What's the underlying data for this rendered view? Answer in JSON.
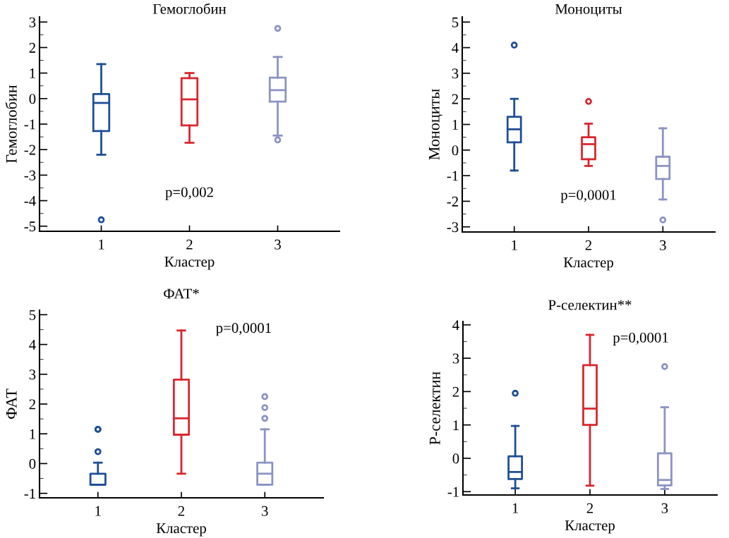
{
  "chart_data": [
    {
      "type": "box",
      "title": "Гемоглобин",
      "xlabel": "Кластер",
      "ylabel": "Гемоглобин",
      "categories": [
        "1",
        "2",
        "3"
      ],
      "colors": [
        "#1f4e96",
        "#d9262e",
        "#8c93c4"
      ],
      "ylim": [
        -5.2,
        3.2
      ],
      "yticks": [
        -5,
        -4,
        -3,
        -2,
        -1,
        0,
        1,
        2,
        3
      ],
      "annotations": [
        "p=0,002"
      ],
      "boxes": [
        {
          "low": -2.2,
          "q1": -1.27,
          "median": -0.17,
          "q3": 0.18,
          "high": 1.35,
          "outliers": [
            -4.75
          ]
        },
        {
          "low": -1.73,
          "q1": -1.05,
          "median": -0.03,
          "q3": 0.8,
          "high": 1.0
        },
        {
          "low": -1.45,
          "q1": -0.12,
          "median": 0.33,
          "q3": 0.82,
          "high": 1.63,
          "outliers": [
            2.75,
            -1.62
          ]
        }
      ]
    },
    {
      "type": "box",
      "title": "Моноциты",
      "xlabel": "Кластер",
      "ylabel": "Моноциты",
      "categories": [
        "1",
        "2",
        "3"
      ],
      "colors": [
        "#1f4e96",
        "#d9262e",
        "#8c93c4"
      ],
      "ylim": [
        -3.2,
        5.2
      ],
      "yticks": [
        -3,
        -2,
        -1,
        0,
        1,
        2,
        3,
        4,
        5
      ],
      "annotations": [
        "p=0,0001"
      ],
      "boxes": [
        {
          "low": -0.8,
          "q1": 0.3,
          "median": 0.81,
          "q3": 1.3,
          "high": 2.0,
          "outliers": [
            4.1
          ]
        },
        {
          "low": -0.62,
          "q1": -0.36,
          "median": 0.23,
          "q3": 0.5,
          "high": 1.03,
          "outliers": [
            1.9
          ]
        },
        {
          "low": -1.93,
          "q1": -1.13,
          "median": -0.62,
          "q3": -0.26,
          "high": 0.85,
          "outliers": [
            -2.73
          ]
        }
      ]
    },
    {
      "type": "box",
      "title": "ФАТ*",
      "xlabel": "Кластер",
      "ylabel": "ФАТ",
      "categories": [
        "1",
        "2",
        "3"
      ],
      "colors": [
        "#1f4e96",
        "#d9262e",
        "#8c93c4"
      ],
      "ylim": [
        -1.15,
        5.15
      ],
      "yticks": [
        -1,
        0,
        1,
        2,
        3,
        4,
        5
      ],
      "annotations": [
        "p=0,0001"
      ],
      "boxes": [
        {
          "low": -0.71,
          "q1": -0.71,
          "median": -0.71,
          "q3": -0.34,
          "high": 0.03,
          "outliers": [
            1.15,
            1.15,
            0.4
          ]
        },
        {
          "low": -0.34,
          "q1": 0.97,
          "median": 1.52,
          "q3": 2.82,
          "high": 4.47
        },
        {
          "low": -0.71,
          "q1": -0.71,
          "median": -0.34,
          "q3": 0.03,
          "high": 1.15,
          "outliers": [
            1.52,
            1.88,
            2.25
          ]
        }
      ]
    },
    {
      "type": "box",
      "title": "Р-селектин**",
      "xlabel": "Кластер",
      "ylabel": "Р-селектин",
      "categories": [
        "1",
        "2",
        "3"
      ],
      "colors": [
        "#1f4e96",
        "#d9262e",
        "#8c93c4"
      ],
      "ylim": [
        -1.1,
        4.1
      ],
      "yticks": [
        -1,
        0,
        1,
        2,
        3,
        4
      ],
      "annotations": [
        "p=0,0001"
      ],
      "boxes": [
        {
          "low": -0.9,
          "q1": -0.62,
          "median": -0.41,
          "q3": 0.06,
          "high": 0.97,
          "outliers": [
            1.95
          ]
        },
        {
          "low": -0.82,
          "q1": 1.0,
          "median": 1.49,
          "q3": 2.79,
          "high": 3.7
        },
        {
          "low": -0.92,
          "q1": -0.81,
          "median": -0.65,
          "q3": 0.15,
          "high": 1.53,
          "outliers": [
            2.75
          ]
        }
      ]
    }
  ]
}
